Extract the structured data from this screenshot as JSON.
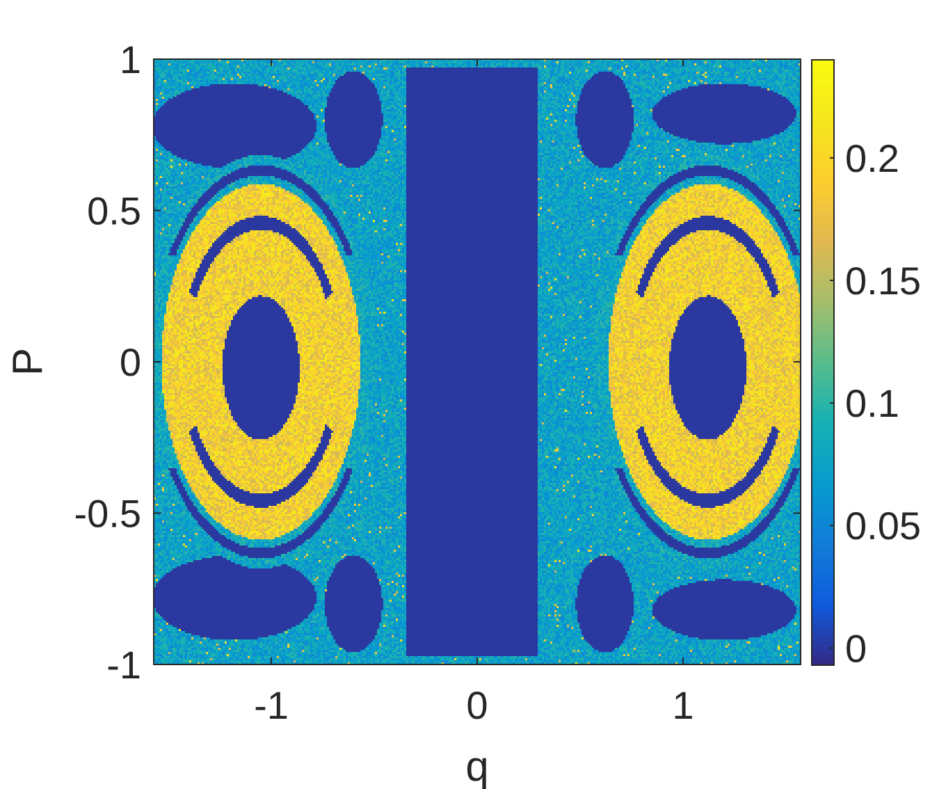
{
  "chart_data": {
    "type": "heatmap",
    "title": "",
    "xlabel": "q",
    "ylabel": "P",
    "xlim": [
      -1.5708,
      1.5708
    ],
    "ylim": [
      -1,
      1
    ],
    "x_ticks": [
      {
        "value": -1,
        "label": "-1"
      },
      {
        "value": 0,
        "label": "0"
      },
      {
        "value": 1,
        "label": "1"
      }
    ],
    "y_ticks": [
      {
        "value": -1,
        "label": "-1"
      },
      {
        "value": -0.5,
        "label": "-0.5"
      },
      {
        "value": 0,
        "label": "0"
      },
      {
        "value": 0.5,
        "label": "0.5"
      },
      {
        "value": 1,
        "label": "1"
      }
    ],
    "colorbar": {
      "colormap": "parula",
      "limits": [
        -0.007,
        0.24
      ],
      "ticks": [
        {
          "value": 0,
          "label": "0"
        },
        {
          "value": 0.05,
          "label": "0.05"
        },
        {
          "value": 0.1,
          "label": "0.1"
        },
        {
          "value": 0.15,
          "label": "0.15"
        },
        {
          "value": 0.2,
          "label": "0.2"
        }
      ]
    },
    "grid": false,
    "regions": [
      {
        "description": "regular central band",
        "q_range": [
          -0.34,
          0.29
        ],
        "p_range": [
          -0.98,
          0.98
        ],
        "value": 0.0
      },
      {
        "description": "chaotic left island ring",
        "q_center": -1.05,
        "p_center": 0.0,
        "value": 0.19
      },
      {
        "description": "chaotic right island ring",
        "q_center": 1.18,
        "p_center": 0.0,
        "value": 0.19
      },
      {
        "description": "left island core",
        "q_center": -1.05,
        "p_center": -0.02,
        "value": 0.0
      },
      {
        "description": "right island core",
        "q_center": 1.05,
        "p_center": -0.02,
        "value": 0.0
      },
      {
        "description": "chaotic sea background",
        "value": 0.08
      }
    ]
  }
}
